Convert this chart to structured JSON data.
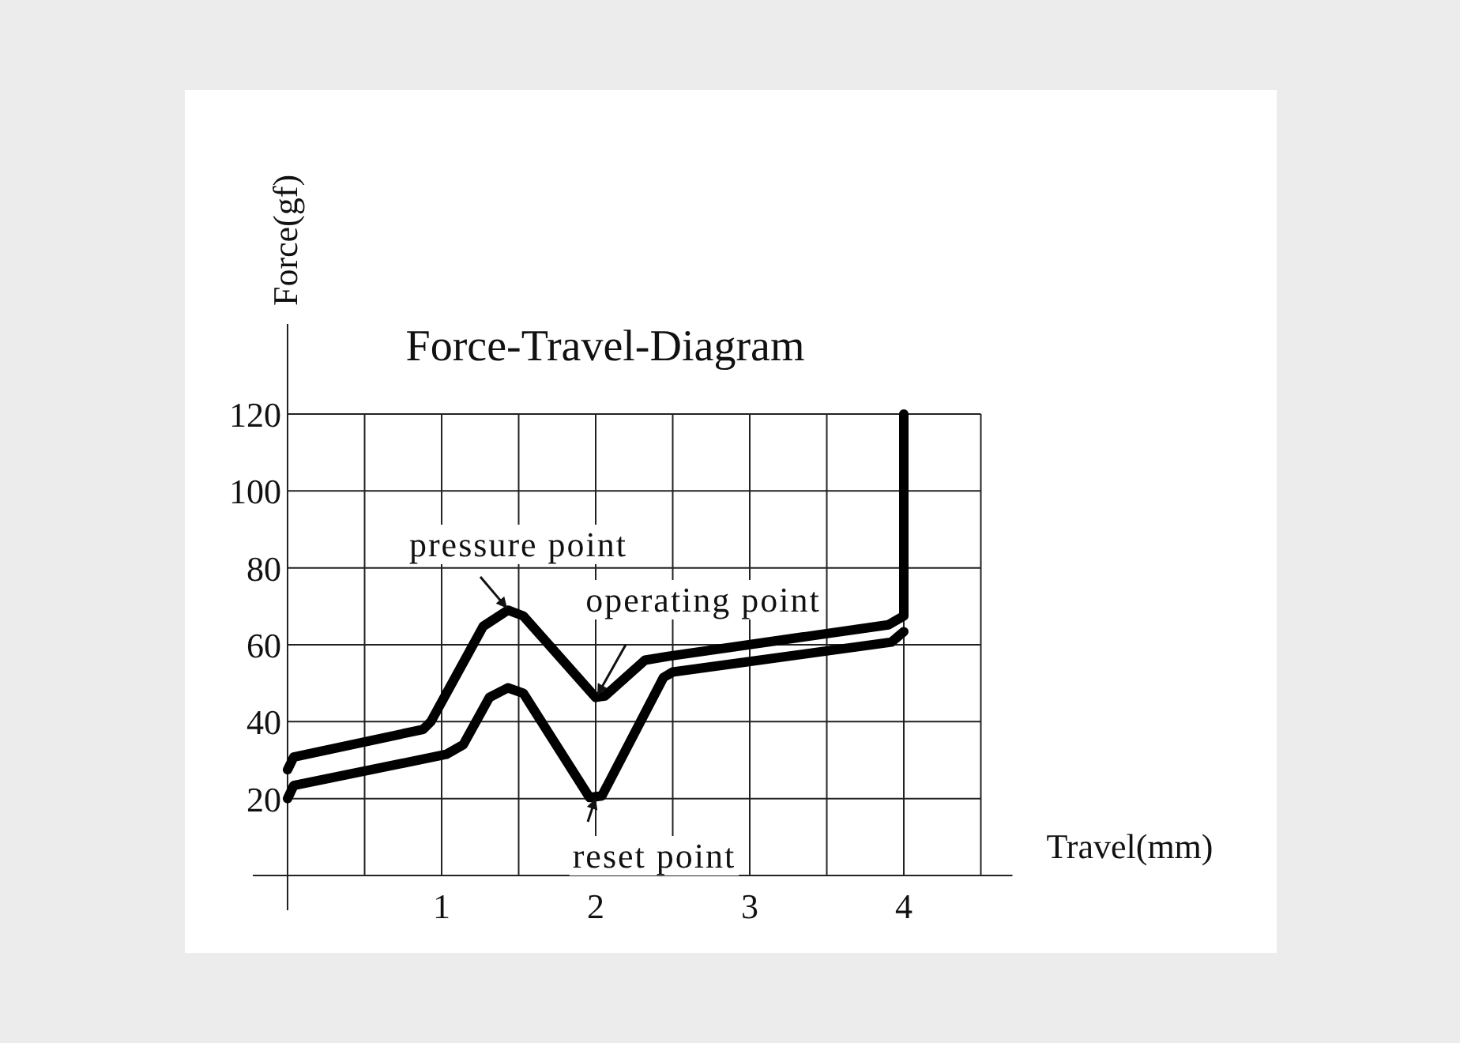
{
  "chart_data": {
    "type": "line",
    "title": "Force-Travel-Diagram",
    "xlabel": "Travel(mm)",
    "ylabel": "Force(gf)",
    "xlim": [
      0,
      4.5
    ],
    "ylim": [
      0,
      120
    ],
    "xticks": [
      {
        "value": 0,
        "label": null
      },
      {
        "value": 0.5,
        "label": null
      },
      1,
      {
        "value": 1.5,
        "label": null
      },
      2,
      {
        "value": 2.5,
        "label": null
      },
      3,
      {
        "value": 3.5,
        "label": null
      },
      4,
      {
        "value": 4.5,
        "label": null
      }
    ],
    "yticks": [
      {
        "value": 0,
        "label": null
      },
      20,
      40,
      60,
      80,
      100,
      120
    ],
    "grid": true,
    "marker": "none",
    "line_style": "solid",
    "series": [
      {
        "color": "#000000",
        "x": [
          0,
          0.04,
          0.88,
          0.93,
          1.27,
          1.43,
          1.53,
          2.0,
          2.06,
          2.32,
          2.47,
          3.9,
          4.0,
          4.0
        ],
        "values": [
          27.5,
          30.8,
          38,
          40,
          64.8,
          69,
          67.5,
          46.3,
          46.7,
          56,
          57,
          65.2,
          67.5,
          120
        ]
      },
      {
        "color": "#000000",
        "x": [
          0,
          0.04,
          1.03,
          1.14,
          1.31,
          1.43,
          1.53,
          1.96,
          2.04,
          2.44,
          2.5,
          3.92,
          4.0
        ],
        "values": [
          20,
          23.4,
          31.5,
          34,
          46.3,
          48.8,
          47.4,
          20.3,
          20.7,
          51.5,
          52.9,
          60.7,
          63.4
        ]
      }
    ],
    "annotations": [
      "pressure point",
      "operating point",
      "reset point"
    ]
  }
}
